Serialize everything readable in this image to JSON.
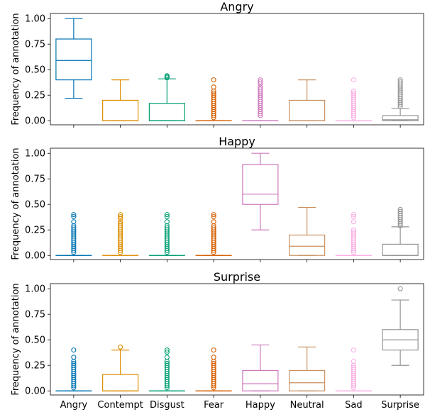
{
  "colors": {
    "Angry": "#0173b2",
    "Contempt": "#de8f05",
    "Disgust": "#029e73",
    "Fear": "#d55e00",
    "Happy": "#cc78bc",
    "Neutral": "#ca9161",
    "Sad": "#fbafe4",
    "Surprise": "#949494"
  },
  "chart_data": [
    {
      "type": "box",
      "title": "Angry",
      "ylabel": "Frequency of annotation",
      "ylim": [
        -0.04,
        1.05
      ],
      "yticks": [
        "0.00",
        "0.25",
        "0.50",
        "0.75",
        "1.00"
      ],
      "categories": [
        "Angry",
        "Contempt",
        "Disgust",
        "Fear",
        "Happy",
        "Neutral",
        "Sad",
        "Surprise"
      ],
      "boxes": [
        {
          "name": "Angry",
          "whislo": 0.22,
          "q1": 0.4,
          "med": 0.59,
          "q3": 0.8,
          "whishi": 1.0,
          "fliers": []
        },
        {
          "name": "Contempt",
          "whislo": 0.0,
          "q1": 0.0,
          "med": 0.0,
          "q3": 0.2,
          "whishi": 0.4,
          "fliers": []
        },
        {
          "name": "Disgust",
          "whislo": 0.0,
          "q1": 0.0,
          "med": 0.0,
          "q3": 0.17,
          "whishi": 0.41,
          "fliers": [
            0.42,
            0.43,
            0.44
          ]
        },
        {
          "name": "Fear",
          "whislo": 0.0,
          "q1": 0.0,
          "med": 0.0,
          "q3": 0.0,
          "whishi": 0.0,
          "fliers": [
            0.03,
            0.05,
            0.07,
            0.09,
            0.11,
            0.13,
            0.15,
            0.17,
            0.19,
            0.21,
            0.23,
            0.25,
            0.27,
            0.29,
            0.33,
            0.4
          ]
        },
        {
          "name": "Happy",
          "whislo": 0.0,
          "q1": 0.0,
          "med": 0.0,
          "q3": 0.0,
          "whishi": 0.0,
          "fliers": [
            0.05,
            0.07,
            0.09,
            0.11,
            0.13,
            0.15,
            0.17,
            0.19,
            0.21,
            0.23,
            0.25,
            0.27,
            0.29,
            0.31,
            0.33,
            0.36,
            0.38,
            0.4
          ]
        },
        {
          "name": "Neutral",
          "whislo": 0.0,
          "q1": 0.0,
          "med": 0.0,
          "q3": 0.2,
          "whishi": 0.4,
          "fliers": []
        },
        {
          "name": "Sad",
          "whislo": 0.0,
          "q1": 0.0,
          "med": 0.0,
          "q3": 0.0,
          "whishi": 0.0,
          "fliers": [
            0.03,
            0.05,
            0.07,
            0.09,
            0.11,
            0.13,
            0.15,
            0.17,
            0.19,
            0.21,
            0.23,
            0.25,
            0.27,
            0.29,
            0.4
          ]
        },
        {
          "name": "Surprise",
          "whislo": 0.0,
          "q1": 0.0,
          "med": 0.01,
          "q3": 0.05,
          "whishi": 0.12,
          "fliers": [
            0.14,
            0.16,
            0.18,
            0.2,
            0.22,
            0.24,
            0.26,
            0.28,
            0.3,
            0.32,
            0.34,
            0.36,
            0.38,
            0.4
          ]
        }
      ]
    },
    {
      "type": "box",
      "title": "Happy",
      "ylabel": "Frequency of annotation",
      "ylim": [
        -0.04,
        1.05
      ],
      "yticks": [
        "0.00",
        "0.25",
        "0.50",
        "0.75",
        "1.00"
      ],
      "categories": [
        "Angry",
        "Contempt",
        "Disgust",
        "Fear",
        "Happy",
        "Neutral",
        "Sad",
        "Surprise"
      ],
      "boxes": [
        {
          "name": "Angry",
          "whislo": 0.0,
          "q1": 0.0,
          "med": 0.0,
          "q3": 0.0,
          "whishi": 0.0,
          "fliers": [
            0.03,
            0.05,
            0.07,
            0.09,
            0.11,
            0.13,
            0.15,
            0.17,
            0.19,
            0.21,
            0.23,
            0.25,
            0.27,
            0.29,
            0.33,
            0.38,
            0.4
          ]
        },
        {
          "name": "Contempt",
          "whislo": 0.0,
          "q1": 0.0,
          "med": 0.0,
          "q3": 0.0,
          "whishi": 0.0,
          "fliers": [
            0.03,
            0.05,
            0.07,
            0.09,
            0.11,
            0.13,
            0.15,
            0.17,
            0.19,
            0.21,
            0.23,
            0.25,
            0.27,
            0.29,
            0.31,
            0.33,
            0.36,
            0.38,
            0.4
          ]
        },
        {
          "name": "Disgust",
          "whislo": 0.0,
          "q1": 0.0,
          "med": 0.0,
          "q3": 0.0,
          "whishi": 0.0,
          "fliers": [
            0.03,
            0.05,
            0.07,
            0.09,
            0.11,
            0.13,
            0.15,
            0.17,
            0.19,
            0.21,
            0.23,
            0.25,
            0.27,
            0.29,
            0.33,
            0.38,
            0.4
          ]
        },
        {
          "name": "Fear",
          "whislo": 0.0,
          "q1": 0.0,
          "med": 0.0,
          "q3": 0.0,
          "whishi": 0.0,
          "fliers": [
            0.03,
            0.05,
            0.07,
            0.09,
            0.11,
            0.13,
            0.15,
            0.17,
            0.19,
            0.21,
            0.23,
            0.25,
            0.27,
            0.29,
            0.33,
            0.38,
            0.4
          ]
        },
        {
          "name": "Happy",
          "whislo": 0.25,
          "q1": 0.5,
          "med": 0.6,
          "q3": 0.89,
          "whishi": 1.0,
          "fliers": []
        },
        {
          "name": "Neutral",
          "whislo": 0.0,
          "q1": 0.0,
          "med": 0.09,
          "q3": 0.2,
          "whishi": 0.47,
          "fliers": []
        },
        {
          "name": "Sad",
          "whislo": 0.0,
          "q1": 0.0,
          "med": 0.0,
          "q3": 0.0,
          "whishi": 0.0,
          "fliers": [
            0.03,
            0.05,
            0.07,
            0.09,
            0.11,
            0.13,
            0.15,
            0.17,
            0.19,
            0.21,
            0.23,
            0.25,
            0.33,
            0.38,
            0.4
          ]
        },
        {
          "name": "Surprise",
          "whislo": 0.0,
          "q1": 0.0,
          "med": 0.0,
          "q3": 0.11,
          "whishi": 0.28,
          "fliers": [
            0.29,
            0.31,
            0.33,
            0.35,
            0.37,
            0.39,
            0.41,
            0.43,
            0.45
          ]
        }
      ]
    },
    {
      "type": "box",
      "title": "Surprise",
      "ylabel": "Frequency of annotation",
      "ylim": [
        -0.04,
        1.05
      ],
      "yticks": [
        "0.00",
        "0.25",
        "0.50",
        "0.75",
        "1.00"
      ],
      "categories": [
        "Angry",
        "Contempt",
        "Disgust",
        "Fear",
        "Happy",
        "Neutral",
        "Sad",
        "Surprise"
      ],
      "boxes": [
        {
          "name": "Angry",
          "whislo": 0.0,
          "q1": 0.0,
          "med": 0.0,
          "q3": 0.0,
          "whishi": 0.0,
          "fliers": [
            0.03,
            0.05,
            0.07,
            0.09,
            0.11,
            0.13,
            0.15,
            0.17,
            0.19,
            0.21,
            0.23,
            0.25,
            0.27,
            0.29,
            0.33,
            0.4
          ]
        },
        {
          "name": "Contempt",
          "whislo": 0.0,
          "q1": 0.0,
          "med": 0.0,
          "q3": 0.16,
          "whishi": 0.4,
          "fliers": [
            0.43
          ]
        },
        {
          "name": "Disgust",
          "whislo": 0.0,
          "q1": 0.0,
          "med": 0.0,
          "q3": 0.0,
          "whishi": 0.0,
          "fliers": [
            0.03,
            0.05,
            0.07,
            0.09,
            0.11,
            0.13,
            0.15,
            0.17,
            0.19,
            0.21,
            0.23,
            0.25,
            0.27,
            0.29,
            0.33,
            0.38,
            0.4
          ]
        },
        {
          "name": "Fear",
          "whislo": 0.0,
          "q1": 0.0,
          "med": 0.0,
          "q3": 0.0,
          "whishi": 0.0,
          "fliers": [
            0.03,
            0.05,
            0.07,
            0.09,
            0.11,
            0.13,
            0.15,
            0.17,
            0.19,
            0.21,
            0.23,
            0.25,
            0.27,
            0.29,
            0.33,
            0.4
          ]
        },
        {
          "name": "Happy",
          "whislo": 0.0,
          "q1": 0.0,
          "med": 0.07,
          "q3": 0.2,
          "whishi": 0.45,
          "fliers": []
        },
        {
          "name": "Neutral",
          "whislo": 0.0,
          "q1": 0.0,
          "med": 0.08,
          "q3": 0.2,
          "whishi": 0.43,
          "fliers": []
        },
        {
          "name": "Sad",
          "whislo": 0.0,
          "q1": 0.0,
          "med": 0.0,
          "q3": 0.0,
          "whishi": 0.0,
          "fliers": [
            0.03,
            0.05,
            0.07,
            0.09,
            0.11,
            0.13,
            0.15,
            0.17,
            0.19,
            0.21,
            0.23,
            0.25,
            0.29,
            0.4
          ]
        },
        {
          "name": "Surprise",
          "whislo": 0.25,
          "q1": 0.4,
          "med": 0.5,
          "q3": 0.6,
          "whishi": 0.89,
          "fliers": [
            1.0
          ]
        }
      ]
    }
  ]
}
